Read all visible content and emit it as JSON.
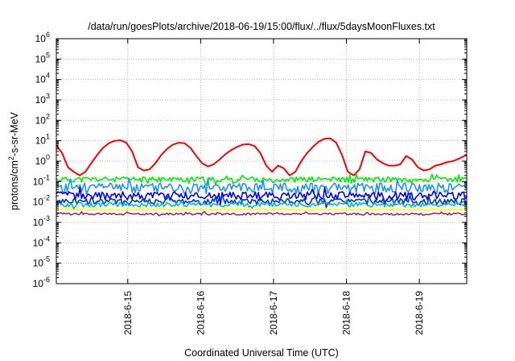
{
  "chart_data": {
    "type": "line",
    "title": "/data/run/goesPlots/archive/2018-06-19/15:00/flux/../flux/5daysMoonFluxes.txt",
    "xlabel": "Coordinated Universal Time (UTC)",
    "ylabel": {
      "pre": "protons/cm",
      "sup": "2",
      "post": "-s-sr-MeV"
    },
    "y_scale": "log",
    "ylim": [
      1e-06,
      1000000.0
    ],
    "y_ticks": [
      {
        "base": "10",
        "exp": "-6"
      },
      {
        "base": "10",
        "exp": "-5"
      },
      {
        "base": "10",
        "exp": "-4"
      },
      {
        "base": "10",
        "exp": "-3"
      },
      {
        "base": "10",
        "exp": "-2"
      },
      {
        "base": "10",
        "exp": "-1"
      },
      {
        "base": "10",
        "exp": "0"
      },
      {
        "base": "10",
        "exp": "1"
      },
      {
        "base": "10",
        "exp": "2"
      },
      {
        "base": "10",
        "exp": "3"
      },
      {
        "base": "10",
        "exp": "4"
      },
      {
        "base": "10",
        "exp": "5"
      },
      {
        "base": "10",
        "exp": "6"
      }
    ],
    "x_ticks": [
      "2018-6-15",
      "2018-6-16",
      "2018-6-17",
      "2018-6-18",
      "2018-6-19"
    ],
    "xlim_days": [
      14.02,
      19.65
    ],
    "grid": true,
    "series": [
      {
        "color": "#ff0000",
        "x": [
          14.02,
          14.1,
          14.18,
          14.26,
          14.34,
          14.42,
          14.5,
          14.58,
          14.66,
          14.74,
          14.82,
          14.9,
          14.98,
          15.06,
          15.14,
          15.22,
          15.3,
          15.38,
          15.46,
          15.54,
          15.62,
          15.7,
          15.78,
          15.86,
          15.94,
          16.02,
          16.1,
          16.18,
          16.26,
          16.34,
          16.42,
          16.5,
          16.58,
          16.66,
          16.74,
          16.82,
          16.9,
          16.98,
          17.06,
          17.14,
          17.22,
          17.3,
          17.38,
          17.46,
          17.54,
          17.62,
          17.7,
          17.78,
          17.86,
          17.94,
          18.02,
          18.1,
          18.18,
          18.26,
          18.34,
          18.42,
          18.5,
          18.58,
          18.66,
          18.74,
          18.82,
          18.9,
          18.98,
          19.06,
          19.14,
          19.22,
          19.3,
          19.38,
          19.46,
          19.54,
          19.62,
          19.65
        ],
        "y": [
          6,
          2.5,
          0.5,
          0.3,
          0.2,
          0.3,
          0.8,
          2,
          4.5,
          7.5,
          10,
          10.5,
          8,
          3,
          0.5,
          0.35,
          0.4,
          0.8,
          2,
          4,
          6.5,
          8,
          7.5,
          4.5,
          1.8,
          0.8,
          0.55,
          0.7,
          1.2,
          2.2,
          3.5,
          5,
          6.5,
          6.8,
          5.5,
          2.5,
          0.6,
          0.3,
          0.6,
          0.45,
          0.2,
          0.3,
          1,
          2.5,
          5,
          9,
          12.5,
          13,
          8,
          2,
          0.3,
          0.2,
          0.4,
          3,
          2.5,
          1.2,
          0.8,
          0.6,
          0.6,
          0.7,
          1.8,
          1.2,
          0.5,
          0.35,
          0.4,
          0.6,
          0.7,
          0.9,
          1,
          1.3,
          1.8,
          2
        ]
      },
      {
        "color": "#00ee00",
        "base": 0.13,
        "amp": 0.3,
        "seed": 11
      },
      {
        "color": "#1e90ff",
        "base": 0.055,
        "amp": 0.55,
        "seed": 23
      },
      {
        "color": "#0000ff",
        "base": 0.022,
        "amp": 0.45,
        "seed": 37
      },
      {
        "color": "#0033cc",
        "base": 0.011,
        "amp": 0.35,
        "seed": 41
      },
      {
        "color": "#00bbbb",
        "base": 0.0075,
        "amp": 0.25,
        "seed": 53
      },
      {
        "color": "#ffff00",
        "base": 0.0042,
        "amp": 0.08,
        "seed": 61
      },
      {
        "color": "#8b2f7a",
        "base": 0.0026,
        "amp": 0.12,
        "seed": 73
      }
    ]
  }
}
